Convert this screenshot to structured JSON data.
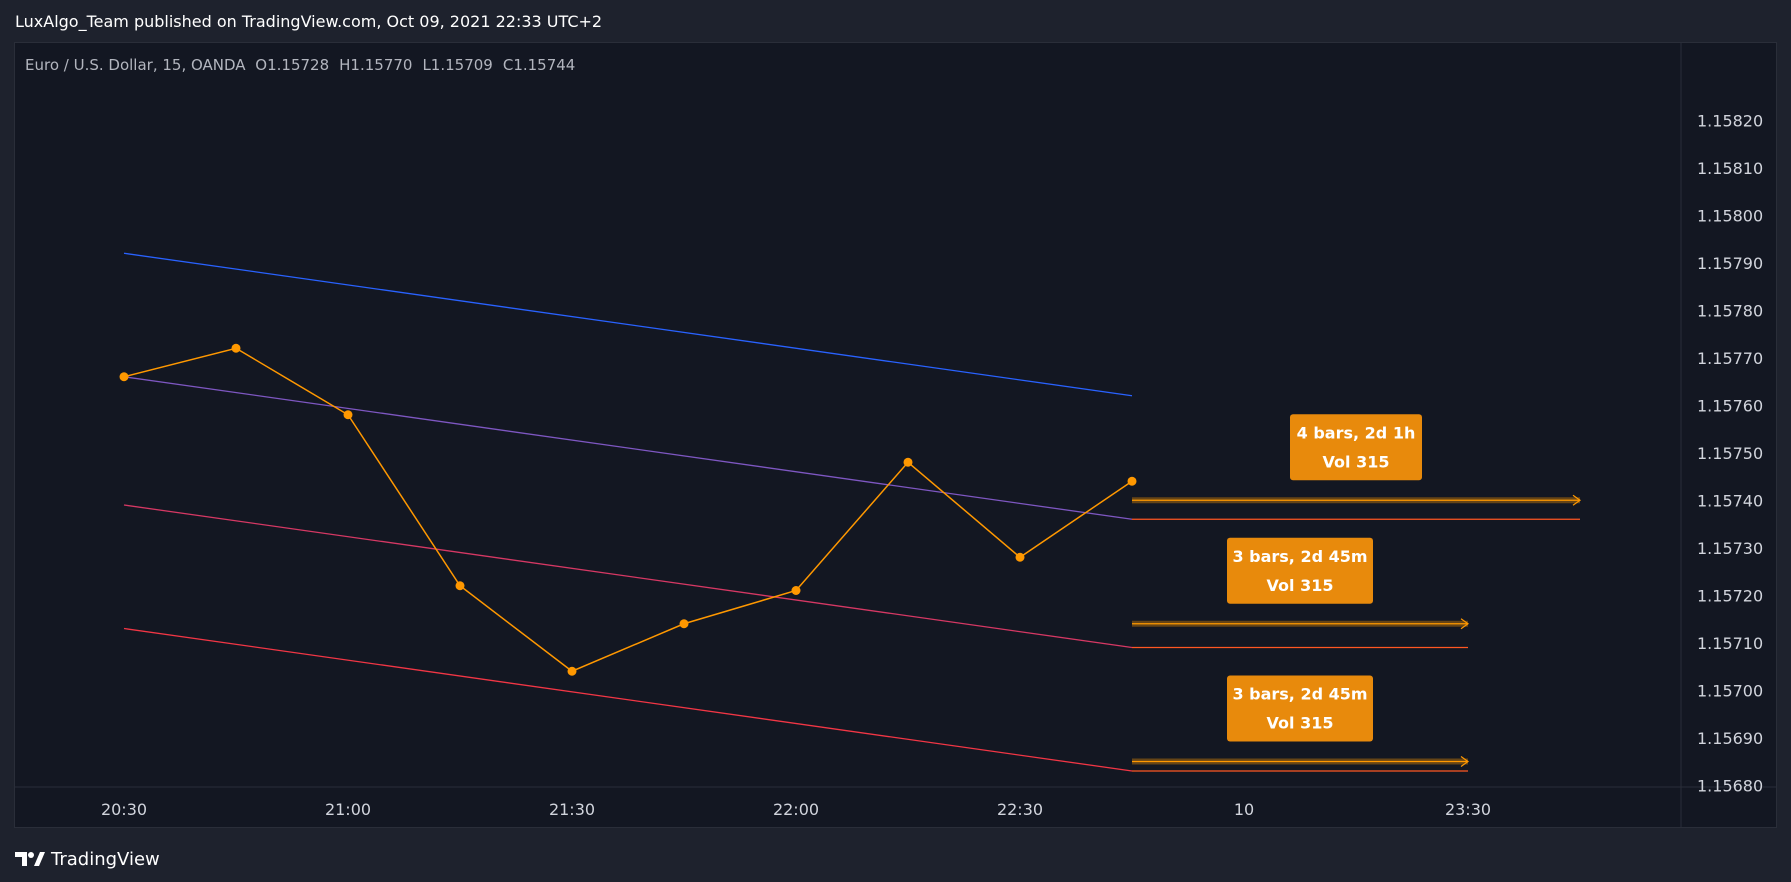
{
  "header": {
    "published_text": "LuxAlgo_Team published on TradingView.com, Oct 09, 2021 22:33 UTC+2"
  },
  "footer": {
    "brand": "TradingView",
    "logo_icon": "tradingview-logo-icon"
  },
  "colors": {
    "background": "#131722",
    "price_line": "#ff9800",
    "blue_line": "#2962ff",
    "purple_line": "#7e57c2",
    "pink_line": "#d63864",
    "red_line": "#f23645",
    "label_bg": "#e88a0c",
    "projection": "#ff5722"
  },
  "chart_data": {
    "type": "line",
    "legend": {
      "symbol": "Euro / U.S. Dollar, 15, OANDA",
      "open": "O1.15728",
      "high": "H1.15770",
      "low": "L1.15709",
      "close": "C1.15744"
    },
    "x_tick_labels": [
      "20:30",
      "21:00",
      "21:30",
      "22:00",
      "22:30",
      "10",
      "23:30"
    ],
    "y_tick_labels": [
      "1.15820",
      "1.15810",
      "1.15800",
      "1.15790",
      "1.15780",
      "1.15770",
      "1.15760",
      "1.15750",
      "1.15740",
      "1.15730",
      "1.15720",
      "1.15710",
      "1.15700",
      "1.15690",
      "1.15680"
    ],
    "ylim": [
      1.15673,
      1.15829
    ],
    "series": [
      {
        "role": "price",
        "x": [
          0,
          0.5,
          1,
          1.5,
          2,
          2.5,
          3,
          3.5,
          4,
          4.5
        ],
        "y": [
          1.15766,
          1.15772,
          1.15758,
          1.15722,
          1.15704,
          1.15714,
          1.15721,
          1.15748,
          1.15728,
          1.15744
        ],
        "markers": true
      },
      {
        "role": "trend-upper",
        "x": [
          0,
          4.5
        ],
        "y": [
          1.15792,
          1.15762
        ]
      },
      {
        "role": "trend-mid",
        "x": [
          0,
          4.5
        ],
        "y": [
          1.15766,
          1.15736
        ]
      },
      {
        "role": "trend-lower",
        "x": [
          0,
          4.5
        ],
        "y": [
          1.15739,
          1.15709
        ]
      },
      {
        "role": "trend-bottom",
        "x": [
          0,
          4.5
        ],
        "y": [
          1.15713,
          1.15683
        ]
      }
    ],
    "projections": [
      {
        "x_start": 4.5,
        "x_end": 6.5,
        "y_arrow": 1.1574,
        "y_line": 1.15736,
        "label_line1": "4 bars, 2d 1h",
        "label_line2": "Vol 315"
      },
      {
        "x_start": 4.5,
        "x_end": 6.0,
        "y_arrow": 1.15714,
        "y_line": 1.15709,
        "label_line1": "3 bars, 2d 45m",
        "label_line2": "Vol 315"
      },
      {
        "x_start": 4.5,
        "x_end": 6.0,
        "y_arrow": 1.15685,
        "y_line": 1.15683,
        "label_line1": "3 bars, 2d 45m",
        "label_line2": "Vol 315"
      }
    ]
  }
}
